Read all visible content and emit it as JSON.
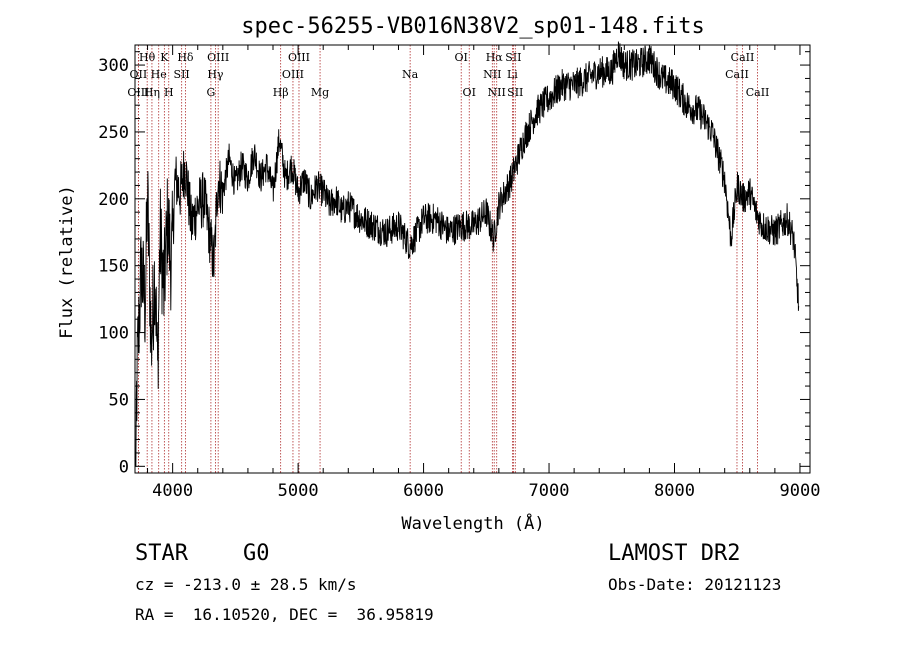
{
  "chart_data": {
    "type": "line",
    "title": "spec-56255-VB016N38V2_sp01-148.fits",
    "xlabel": "Wavelength (Å)",
    "ylabel": "Flux (relative)",
    "xlim": [
      3700,
      9080
    ],
    "ylim": [
      -5,
      315
    ],
    "xticks": [
      4000,
      5000,
      6000,
      7000,
      8000,
      9000
    ],
    "yticks": [
      0,
      50,
      100,
      150,
      200,
      250,
      300
    ],
    "grid": false,
    "series": [
      {
        "name": "spectrum",
        "color": "#000000",
        "x": [
          3700,
          3720,
          3750,
          3780,
          3800,
          3830,
          3860,
          3880,
          3900,
          3930,
          3960,
          3990,
          4020,
          4060,
          4100,
          4150,
          4200,
          4250,
          4300,
          4330,
          4360,
          4400,
          4450,
          4500,
          4550,
          4600,
          4650,
          4700,
          4750,
          4800,
          4850,
          4900,
          4950,
          5000,
          5050,
          5100,
          5150,
          5200,
          5250,
          5300,
          5350,
          5400,
          5500,
          5600,
          5700,
          5800,
          5890,
          5950,
          6000,
          6100,
          6200,
          6300,
          6400,
          6500,
          6560,
          6600,
          6650,
          6700,
          6800,
          6900,
          7000,
          7100,
          7200,
          7300,
          7400,
          7500,
          7550,
          7600,
          7700,
          7800,
          7900,
          8000,
          8100,
          8200,
          8300,
          8400,
          8450,
          8500,
          8550,
          8600,
          8650,
          8700,
          8800,
          8900,
          8950,
          8990
        ],
        "y": [
          0,
          80,
          150,
          120,
          200,
          90,
          150,
          70,
          175,
          130,
          185,
          150,
          215,
          205,
          225,
          180,
          195,
          200,
          170,
          150,
          215,
          205,
          230,
          210,
          225,
          215,
          235,
          215,
          225,
          205,
          245,
          215,
          225,
          205,
          215,
          200,
          210,
          205,
          195,
          200,
          190,
          195,
          185,
          180,
          175,
          180,
          165,
          175,
          185,
          185,
          175,
          180,
          180,
          190,
          170,
          195,
          205,
          215,
          245,
          265,
          275,
          285,
          285,
          290,
          295,
          295,
          310,
          300,
          300,
          305,
          290,
          285,
          270,
          265,
          250,
          215,
          170,
          210,
          200,
          205,
          190,
          180,
          175,
          185,
          170,
          120
        ]
      }
    ],
    "lines": [
      {
        "label": "Hθ",
        "x": 3797,
        "row": 0
      },
      {
        "label": "OII",
        "x": 3727,
        "row": 1
      },
      {
        "label": "OIII",
        "x": 3727,
        "row": 2
      },
      {
        "label": "He",
        "x": 3889,
        "row": 1
      },
      {
        "label": "Hη",
        "x": 3835,
        "row": 2
      },
      {
        "label": "K",
        "x": 3934,
        "row": 0
      },
      {
        "label": "SII",
        "x": 4072,
        "row": 1
      },
      {
        "label": "H",
        "x": 3969,
        "row": 2
      },
      {
        "label": "Hδ",
        "x": 4102,
        "row": 0
      },
      {
        "label": "OIII",
        "x": 4363,
        "row": 0
      },
      {
        "label": "Hγ",
        "x": 4341,
        "row": 1
      },
      {
        "label": "G",
        "x": 4305,
        "row": 2
      },
      {
        "label": "Hβ",
        "x": 4861,
        "row": 2
      },
      {
        "label": "OIII",
        "x": 5007,
        "row": 0
      },
      {
        "label": "OIII",
        "x": 4959,
        "row": 1
      },
      {
        "label": "Mg",
        "x": 5175,
        "row": 2
      },
      {
        "label": "Na",
        "x": 5893,
        "row": 1
      },
      {
        "label": "OI",
        "x": 6300,
        "row": 0
      },
      {
        "label": "OI",
        "x": 6364,
        "row": 2
      },
      {
        "label": "Hα",
        "x": 6563,
        "row": 0
      },
      {
        "label": "SII",
        "x": 6716,
        "row": 0
      },
      {
        "label": "NII",
        "x": 6548,
        "row": 1
      },
      {
        "label": "Li",
        "x": 6708,
        "row": 1
      },
      {
        "label": "NII",
        "x": 6583,
        "row": 2
      },
      {
        "label": "SII",
        "x": 6731,
        "row": 2
      },
      {
        "label": "CaII",
        "x": 8542,
        "row": 0
      },
      {
        "label": "CaII",
        "x": 8498,
        "row": 1
      },
      {
        "label": "CaII",
        "x": 8662,
        "row": 2
      }
    ]
  },
  "info": {
    "class": "STAR",
    "subclass": "G0",
    "survey": "LAMOST DR2",
    "cz": "cz = -213.0 ± 28.5 km/s",
    "obs_date": "Obs-Date: 20121123",
    "coords": "RA =  16.10520, DEC =  36.95819"
  }
}
